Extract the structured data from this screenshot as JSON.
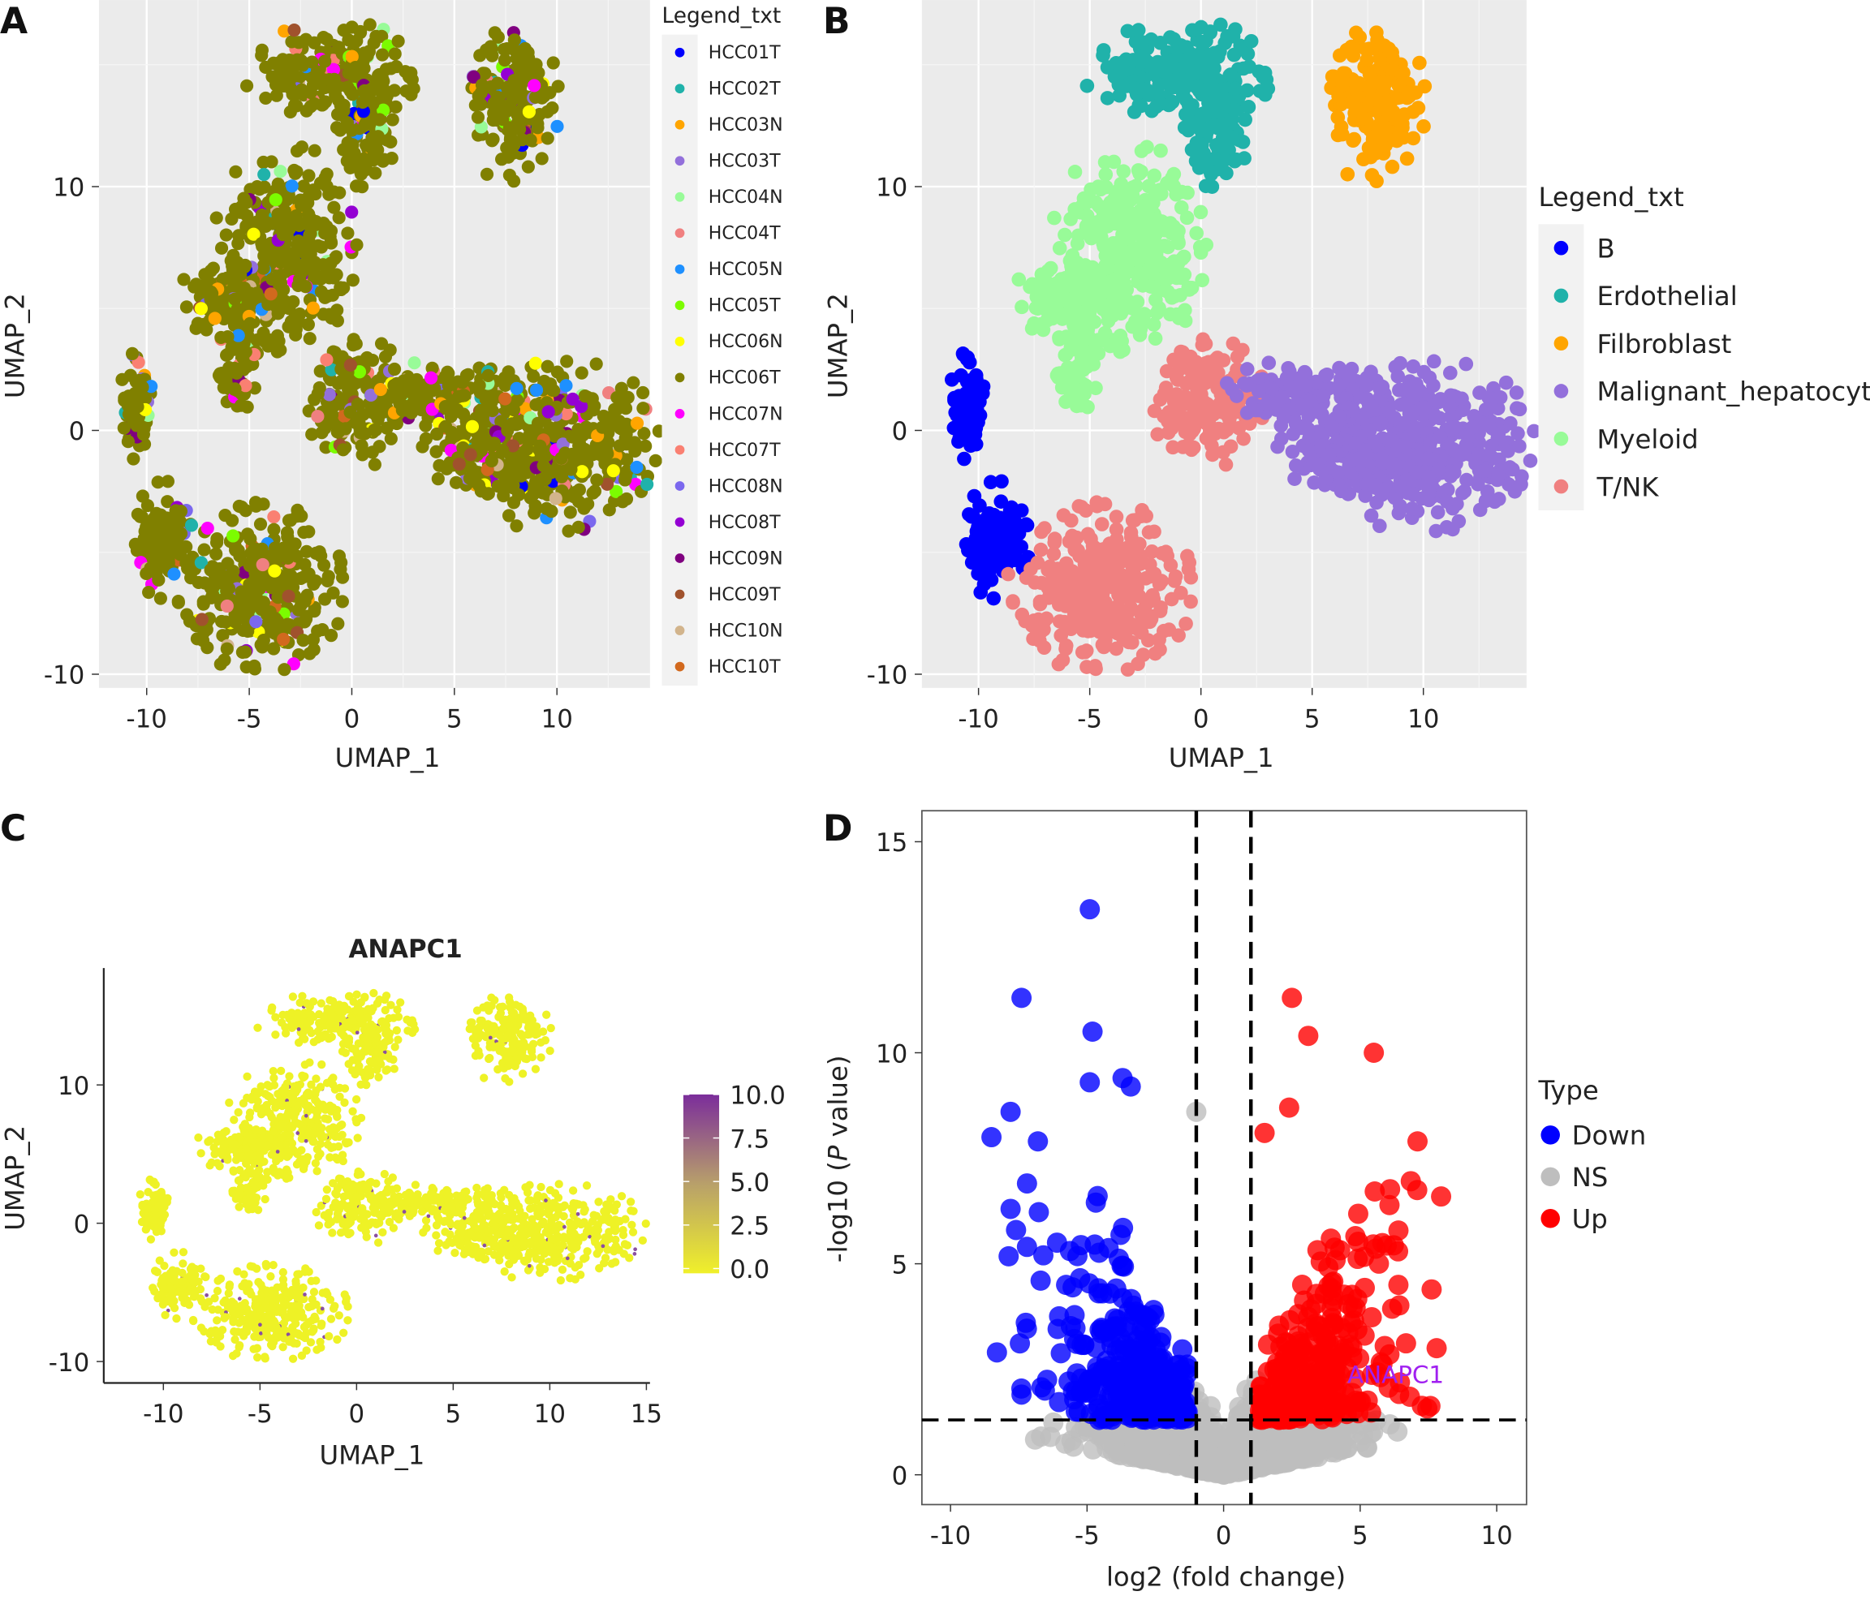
{
  "panels": {
    "a": "A",
    "b": "B",
    "c": "C",
    "d": "D"
  },
  "chart_data": [
    {
      "type": "scatter",
      "panel": "A",
      "xlabel": "UMAP_1",
      "ylabel": "UMAP_2",
      "xticks": [
        -10,
        -5,
        0,
        5,
        10
      ],
      "yticks": [
        -10,
        0,
        10
      ],
      "xlim": [
        -12.3,
        14.8
      ],
      "ylim": [
        -10.5,
        17.6
      ],
      "grid": true,
      "legend": {
        "title": "Legend_txt",
        "placement": "right",
        "items": [
          {
            "label": "HCC01T",
            "color": "#0000ff"
          },
          {
            "label": "HCC02T",
            "color": "#20b2aa"
          },
          {
            "label": "HCC03N",
            "color": "#ffa500"
          },
          {
            "label": "HCC03T",
            "color": "#9370db"
          },
          {
            "label": "HCC04N",
            "color": "#98fb98"
          },
          {
            "label": "HCC04T",
            "color": "#f08080"
          },
          {
            "label": "HCC05N",
            "color": "#1e90ff"
          },
          {
            "label": "HCC05T",
            "color": "#7cfc00"
          },
          {
            "label": "HCC06N",
            "color": "#ffff00"
          },
          {
            "label": "HCC06T",
            "color": "#808000"
          },
          {
            "label": "HCC07N",
            "color": "#ff00ff"
          },
          {
            "label": "HCC07T",
            "color": "#fa8072"
          },
          {
            "label": "HCC08N",
            "color": "#7b68ee"
          },
          {
            "label": "HCC08T",
            "color": "#9400d3"
          },
          {
            "label": "HCC09N",
            "color": "#800080"
          },
          {
            "label": "HCC09T",
            "color": "#a0522d"
          },
          {
            "label": "HCC10N",
            "color": "#d2b48c"
          },
          {
            "label": "HCC10T",
            "color": "#d2691e"
          }
        ]
      }
    },
    {
      "type": "scatter",
      "panel": "B",
      "xlabel": "UMAP_1",
      "ylabel": "UMAP_2",
      "xticks": [
        -10,
        -5,
        0,
        5,
        10
      ],
      "yticks": [
        -10,
        0,
        10
      ],
      "xlim": [
        -12.5,
        14.6
      ],
      "ylim": [
        -10.5,
        17.6
      ],
      "grid": true,
      "legend": {
        "title": "Legend_txt",
        "placement": "right",
        "items": [
          {
            "label": "B",
            "color": "#0000ff"
          },
          {
            "label": "Erdothelial",
            "color": "#20b2aa"
          },
          {
            "label": "Filbroblast",
            "color": "#ffa500"
          },
          {
            "label": "Malignant_hepatocyte",
            "color": "#9370db"
          },
          {
            "label": "Myeloid",
            "color": "#98fb98"
          },
          {
            "label": "T/NK",
            "color": "#f08080"
          }
        ]
      },
      "clusters": [
        {
          "type": "Erdothelial",
          "center": [
            -1,
            14.8
          ],
          "spread": [
            2.2,
            0.9
          ]
        },
        {
          "type": "Erdothelial",
          "center": [
            0.8,
            12.5
          ],
          "spread": [
            0.7,
            1.2
          ]
        },
        {
          "type": "Filbroblast",
          "center": [
            7.8,
            13.3
          ],
          "spread": [
            1.1,
            1.5
          ]
        },
        {
          "type": "Myeloid",
          "center": [
            -3.2,
            7.5
          ],
          "spread": [
            1.6,
            2.0
          ]
        },
        {
          "type": "Myeloid",
          "center": [
            -5.8,
            5.5
          ],
          "spread": [
            1.3,
            0.8
          ]
        },
        {
          "type": "Myeloid",
          "center": [
            -5.5,
            3.0
          ],
          "spread": [
            0.5,
            1.2
          ]
        },
        {
          "type": "B",
          "center": [
            -10.5,
            1.0
          ],
          "spread": [
            0.35,
            1.1
          ]
        },
        {
          "type": "B",
          "center": [
            -9.2,
            -4.5
          ],
          "spread": [
            0.7,
            1.1
          ]
        },
        {
          "type": "T/NK",
          "center": [
            -4.3,
            -6.5
          ],
          "spread": [
            2.0,
            1.6
          ]
        },
        {
          "type": "T/NK",
          "center": [
            0.5,
            1.2
          ],
          "spread": [
            1.3,
            1.2
          ]
        },
        {
          "type": "Malignant_hepatocyte",
          "center": [
            10.0,
            -0.6
          ],
          "spread": [
            2.4,
            1.6
          ]
        },
        {
          "type": "Malignant_hepatocyte",
          "center": [
            4.5,
            1.4
          ],
          "spread": [
            1.8,
            0.7
          ]
        },
        {
          "type": "Malignant_hepatocyte",
          "center": [
            6.5,
            -1.0
          ],
          "spread": [
            1.4,
            0.8
          ]
        }
      ]
    },
    {
      "type": "scatter",
      "panel": "C",
      "title": "ANAPC1",
      "xlabel": "UMAP_1",
      "ylabel": "UMAP_2",
      "xticks": [
        -10,
        -5,
        0,
        5,
        10,
        15
      ],
      "yticks": [
        -10,
        0,
        10
      ],
      "xlim": [
        -13,
        15.3
      ],
      "ylim": [
        -11.5,
        17.2
      ],
      "grid": false,
      "colorbar": {
        "ticks": [
          "10.0",
          "7.5",
          "5.0",
          "2.5",
          "0.0"
        ],
        "range": [
          0,
          10
        ],
        "low_color": "#f0f02a",
        "high_color": "#7b2d9b"
      }
    },
    {
      "type": "scatter",
      "panel": "D",
      "xlabel": "log2 (fold change)",
      "ylabel_prefix": "-log10 (",
      "ylabel_italic": "P",
      "ylabel_suffix": " value)",
      "xticks": [
        -10,
        -5,
        0,
        5,
        10
      ],
      "yticks": [
        0,
        5,
        10,
        15
      ],
      "xlim": [
        -11,
        11.1
      ],
      "ylim": [
        -0.7,
        15.7
      ],
      "thresholds": {
        "log2fc": [
          -1,
          1
        ],
        "neg_log10_p": 1.3
      },
      "annotation": {
        "text": "ANAPC1",
        "x": 6.3,
        "y": 2.4,
        "color": "#a020f0"
      },
      "legend": {
        "title": "Type",
        "placement": "right",
        "items": [
          {
            "label": "Down",
            "color": "#0000ff"
          },
          {
            "label": "NS",
            "color": "#bebebe"
          },
          {
            "label": "Up",
            "color": "#ff0000"
          }
        ]
      },
      "highlighted_points": [
        {
          "type": "Down",
          "x": -4.9,
          "y": 13.4
        },
        {
          "type": "Down",
          "x": -7.4,
          "y": 11.3
        },
        {
          "type": "Down",
          "x": -4.8,
          "y": 10.5
        },
        {
          "type": "Down",
          "x": -8.5,
          "y": 8.0
        },
        {
          "type": "Down",
          "x": -7.8,
          "y": 8.6
        },
        {
          "type": "Down",
          "x": -6.8,
          "y": 7.9
        },
        {
          "type": "Down",
          "x": -4.9,
          "y": 9.3
        },
        {
          "type": "Down",
          "x": -3.7,
          "y": 9.4
        },
        {
          "type": "Down",
          "x": -3.4,
          "y": 9.2
        },
        {
          "type": "Down",
          "x": -7.8,
          "y": 6.3
        },
        {
          "type": "Down",
          "x": -7.6,
          "y": 5.8
        },
        {
          "type": "Down",
          "x": -7.2,
          "y": 5.4
        },
        {
          "type": "Down",
          "x": -6.6,
          "y": 5.2
        },
        {
          "type": "Down",
          "x": -6.7,
          "y": 4.6
        },
        {
          "type": "Down",
          "x": -8.3,
          "y": 2.9
        },
        {
          "type": "Down",
          "x": -7.4,
          "y": 1.9
        },
        {
          "type": "Down",
          "x": -6.1,
          "y": 5.5
        },
        {
          "type": "Up",
          "x": 2.5,
          "y": 11.3
        },
        {
          "type": "Up",
          "x": 3.1,
          "y": 10.4
        },
        {
          "type": "Up",
          "x": 5.5,
          "y": 10.0
        },
        {
          "type": "Up",
          "x": 2.4,
          "y": 8.7
        },
        {
          "type": "Up",
          "x": 7.1,
          "y": 7.9
        },
        {
          "type": "Up",
          "x": 1.5,
          "y": 8.1
        },
        {
          "type": "Up",
          "x": 7.8,
          "y": 3.0
        },
        {
          "type": "Up",
          "x": 6.4,
          "y": 4.5
        },
        {
          "type": "NS",
          "x": -1.0,
          "y": 8.6
        }
      ]
    }
  ]
}
